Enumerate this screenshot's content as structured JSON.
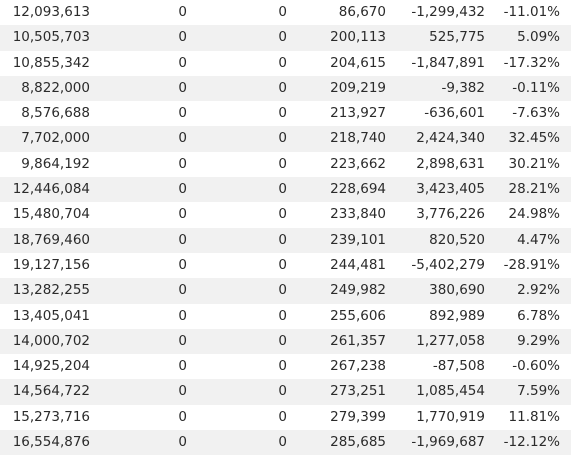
{
  "table": {
    "rows": [
      [
        "12,093,613",
        "0",
        "0",
        "86,670",
        "-1,299,432",
        "-11.01%"
      ],
      [
        "10,505,703",
        "0",
        "0",
        "200,113",
        "525,775",
        "5.09%"
      ],
      [
        "10,855,342",
        "0",
        "0",
        "204,615",
        "-1,847,891",
        "-17.32%"
      ],
      [
        "8,822,000",
        "0",
        "0",
        "209,219",
        "-9,382",
        "-0.11%"
      ],
      [
        "8,576,688",
        "0",
        "0",
        "213,927",
        "-636,601",
        "-7.63%"
      ],
      [
        "7,702,000",
        "0",
        "0",
        "218,740",
        "2,424,340",
        "32.45%"
      ],
      [
        "9,864,192",
        "0",
        "0",
        "223,662",
        "2,898,631",
        "30.21%"
      ],
      [
        "12,446,084",
        "0",
        "0",
        "228,694",
        "3,423,405",
        "28.21%"
      ],
      [
        "15,480,704",
        "0",
        "0",
        "233,840",
        "3,776,226",
        "24.98%"
      ],
      [
        "18,769,460",
        "0",
        "0",
        "239,101",
        "820,520",
        "4.47%"
      ],
      [
        "19,127,156",
        "0",
        "0",
        "244,481",
        "-5,402,279",
        "-28.91%"
      ],
      [
        "13,282,255",
        "0",
        "0",
        "249,982",
        "380,690",
        "2.92%"
      ],
      [
        "13,405,041",
        "0",
        "0",
        "255,606",
        "892,989",
        "6.78%"
      ],
      [
        "14,000,702",
        "0",
        "0",
        "261,357",
        "1,277,058",
        "9.29%"
      ],
      [
        "14,925,204",
        "0",
        "0",
        "267,238",
        "-87,508",
        "-0.60%"
      ],
      [
        "14,564,722",
        "0",
        "0",
        "273,251",
        "1,085,454",
        "7.59%"
      ],
      [
        "15,273,716",
        "0",
        "0",
        "279,399",
        "1,770,919",
        "11.81%"
      ],
      [
        "16,554,876",
        "0",
        "0",
        "285,685",
        "-1,969,687",
        "-12.12%"
      ]
    ]
  }
}
